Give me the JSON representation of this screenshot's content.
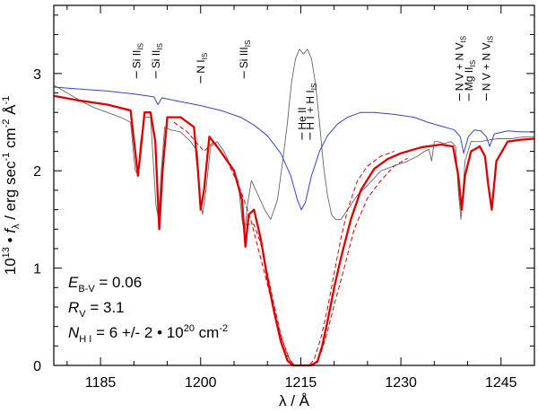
{
  "chart_data": {
    "type": "line",
    "title": "",
    "xlabel": "λ / Å",
    "ylabel": "10^13 • f_λ / erg sec^-1 cm^-2 Å^-1",
    "ylabel_parts": {
      "pre": "10",
      "pre_sup": "13",
      "mid": " • ",
      "flux": "f",
      "flux_sub": "λ",
      "units1": " / erg sec",
      "sup1": "-1",
      "units2": " cm",
      "sup2": "-2",
      "units3": " Å",
      "sup3": "-1"
    },
    "xlim": [
      1178,
      1250
    ],
    "ylim": [
      0,
      3.7
    ],
    "x_ticks": [
      1185,
      1200,
      1215,
      1230,
      1245
    ],
    "x_tick_labels": [
      "1185",
      "1200",
      "1215",
      "1230",
      "1245"
    ],
    "y_ticks": [
      0,
      1,
      2,
      3
    ],
    "y_tick_labels": [
      "0",
      "1",
      "2",
      "3"
    ],
    "series": [
      {
        "name": "observed spectrum",
        "color": "#666666",
        "x": [
          1178,
          1180,
          1182,
          1184,
          1186,
          1188,
          1189.5,
          1190.2,
          1190.6,
          1191.0,
          1191.6,
          1192.5,
          1193.3,
          1193.7,
          1194.1,
          1194.6,
          1195.5,
          1197,
          1198.5,
          1199.5,
          1199.9,
          1200.3,
          1200.8,
          1201.5,
          1202.5,
          1203.5,
          1204.5,
          1205.6,
          1206.2,
          1206.6,
          1207.0,
          1207.6,
          1208.6,
          1209.6,
          1210.5,
          1211.5,
          1212.3,
          1213.0,
          1213.6,
          1214.2,
          1214.8,
          1215.4,
          1216.0,
          1216.6,
          1217.2,
          1217.8,
          1218.4,
          1219.0,
          1219.6,
          1220.2,
          1221.0,
          1222.0,
          1223.5,
          1225,
          1227,
          1229,
          1231,
          1232.5,
          1233.5,
          1234.2,
          1234.6,
          1235.0,
          1235.5,
          1236.5,
          1237.5,
          1238.2,
          1238.6,
          1239.0,
          1239.6,
          1240.5,
          1242,
          1243.5,
          1244.5,
          1246.5,
          1248.5,
          1250
        ],
        "y": [
          2.88,
          2.8,
          2.72,
          2.65,
          2.6,
          2.55,
          2.5,
          2.0,
          1.97,
          2.3,
          2.55,
          2.55,
          1.65,
          1.5,
          2.0,
          2.45,
          2.42,
          2.4,
          2.3,
          2.2,
          1.7,
          1.55,
          1.8,
          2.25,
          2.3,
          2.2,
          2.05,
          1.9,
          1.5,
          1.35,
          1.65,
          1.9,
          1.75,
          1.6,
          1.5,
          1.7,
          2.1,
          2.5,
          2.9,
          3.15,
          3.25,
          3.2,
          3.25,
          3.15,
          2.9,
          2.5,
          2.05,
          1.75,
          1.55,
          1.5,
          1.5,
          1.6,
          1.75,
          1.85,
          2.0,
          2.05,
          2.1,
          2.15,
          2.2,
          2.22,
          2.1,
          2.3,
          2.3,
          2.28,
          2.3,
          2.25,
          1.8,
          1.5,
          2.1,
          2.3,
          2.3,
          2.32,
          2.33,
          2.33,
          2.35,
          2.35
        ]
      },
      {
        "name": "intrinsic model (blue)",
        "color": "#3344cc",
        "x": [
          1178,
          1182,
          1186,
          1190,
          1193,
          1193.6,
          1194.2,
          1197,
          1200,
          1203,
          1206,
          1208,
          1210,
          1212,
          1213.5,
          1214.5,
          1215.1,
          1215.7,
          1216.6,
          1217.8,
          1219,
          1220.5,
          1222,
          1224,
          1226,
          1229,
          1232,
          1234,
          1236,
          1238,
          1238.9,
          1239.4,
          1240.1,
          1241,
          1242,
          1242.8,
          1243.3,
          1244,
          1246,
          1248,
          1250
        ],
        "y": [
          2.86,
          2.84,
          2.82,
          2.79,
          2.76,
          2.68,
          2.75,
          2.71,
          2.67,
          2.62,
          2.55,
          2.47,
          2.36,
          2.18,
          1.95,
          1.7,
          1.6,
          1.68,
          1.95,
          2.2,
          2.36,
          2.48,
          2.55,
          2.6,
          2.6,
          2.58,
          2.55,
          2.5,
          2.46,
          2.42,
          2.35,
          2.18,
          2.35,
          2.42,
          2.41,
          2.35,
          2.25,
          2.38,
          2.41,
          2.4,
          2.4
        ]
      },
      {
        "name": "model with ISM absorption (red)",
        "color": "#dd0000",
        "x": [
          1178,
          1182,
          1186,
          1189.5,
          1190.2,
          1190.6,
          1191.0,
          1191.6,
          1192.5,
          1193.2,
          1193.8,
          1194.3,
          1195,
          1197,
          1199,
          1199.6,
          1200,
          1200.5,
          1201.3,
          1203,
          1205,
          1206.2,
          1206.7,
          1207.2,
          1208,
          1209,
          1210,
          1211,
          1212,
          1213,
          1213.8,
          1214.5,
          1216.5,
          1217.5,
          1218.2,
          1219,
          1220,
          1221,
          1222.5,
          1224,
          1226,
          1228,
          1230,
          1233,
          1236,
          1237.8,
          1238.6,
          1239.1,
          1239.6,
          1240.5,
          1241.8,
          1242.6,
          1243.1,
          1243.6,
          1244.3,
          1246,
          1248,
          1250
        ],
        "y": [
          2.77,
          2.72,
          2.68,
          2.62,
          2.2,
          1.95,
          2.2,
          2.6,
          2.6,
          2.3,
          1.4,
          2.0,
          2.55,
          2.55,
          2.45,
          2.0,
          1.6,
          1.8,
          2.35,
          2.2,
          2.0,
          1.7,
          1.22,
          1.55,
          1.6,
          1.3,
          0.9,
          0.55,
          0.25,
          0.05,
          0.0,
          0.0,
          0.0,
          0.04,
          0.2,
          0.45,
          0.8,
          1.1,
          1.5,
          1.8,
          2.02,
          2.12,
          2.18,
          2.24,
          2.27,
          2.25,
          1.95,
          1.6,
          1.95,
          2.2,
          2.25,
          2.15,
          1.85,
          1.6,
          2.1,
          2.3,
          2.32,
          2.33
        ]
      },
      {
        "name": "upper uncertainty (red dashed)",
        "color": "#dd0000",
        "dashed": true,
        "x": [
          1206.7,
          1208,
          1209,
          1210,
          1211,
          1212,
          1213,
          1214,
          1214.8,
          1216.2,
          1217,
          1218,
          1219,
          1220,
          1221,
          1222,
          1223.5,
          1225,
          1227,
          1229
        ],
        "y": [
          1.45,
          1.45,
          1.25,
          0.95,
          0.62,
          0.32,
          0.1,
          0.0,
          0.0,
          0.0,
          0.06,
          0.28,
          0.58,
          0.95,
          1.3,
          1.6,
          1.9,
          2.05,
          2.15,
          2.2
        ]
      },
      {
        "name": "lower uncertainty (red dashed)",
        "color": "#dd0000",
        "dashed": true,
        "x": [
          1196,
          1198,
          1200.5,
          1202,
          1204,
          1206,
          1207.5,
          1209,
          1210.5,
          1212,
          1213.4,
          1214.1,
          1216.9,
          1218,
          1219,
          1220,
          1221.5,
          1223,
          1225,
          1227,
          1229,
          1231
        ],
        "y": [
          2.5,
          2.4,
          2.2,
          2.3,
          2.1,
          1.8,
          1.5,
          1.1,
          0.7,
          0.3,
          0.05,
          0.0,
          0.0,
          0.12,
          0.35,
          0.62,
          1.0,
          1.4,
          1.72,
          1.9,
          2.05,
          2.13
        ]
      }
    ],
    "line_ids": [
      {
        "ion": "Si II",
        "sub": "IS",
        "x": 1190.4,
        "y": 2.95
      },
      {
        "ion": "Si II",
        "sub": "IS",
        "x": 1193.3,
        "y": 2.95
      },
      {
        "ion": "N I",
        "sub": "IS",
        "x": 1200.0,
        "y": 2.9
      },
      {
        "ion": "Si III",
        "sub": "IS",
        "x": 1206.5,
        "y": 2.95
      },
      {
        "ion": "He II",
        "sub": "",
        "x": 1215.2,
        "y": 2.32
      },
      {
        "ion": "H I + H I",
        "sub": "IS",
        "x": 1216.4,
        "y": 2.32
      },
      {
        "ion": "N V + N V",
        "sub": "IS",
        "x": 1238.8,
        "y": 2.72
      },
      {
        "ion": "Mg II",
        "sub": "IS",
        "x": 1240.2,
        "y": 2.72
      },
      {
        "ion": "N V + N V",
        "sub": "IS",
        "x": 1242.8,
        "y": 2.72
      }
    ],
    "annotations": {
      "ebv": {
        "sym": "E",
        "sub": "B-V",
        "text": " = 0.06"
      },
      "rv": {
        "sym": "R",
        "sub": "V",
        "text": "  = 3.1"
      },
      "nhi": {
        "sym": "N",
        "sub": "H I",
        "text": " = 6 +/- 2 • 10",
        "sup": "20",
        "tail": " cm",
        "tail_sup": "-2"
      }
    }
  }
}
